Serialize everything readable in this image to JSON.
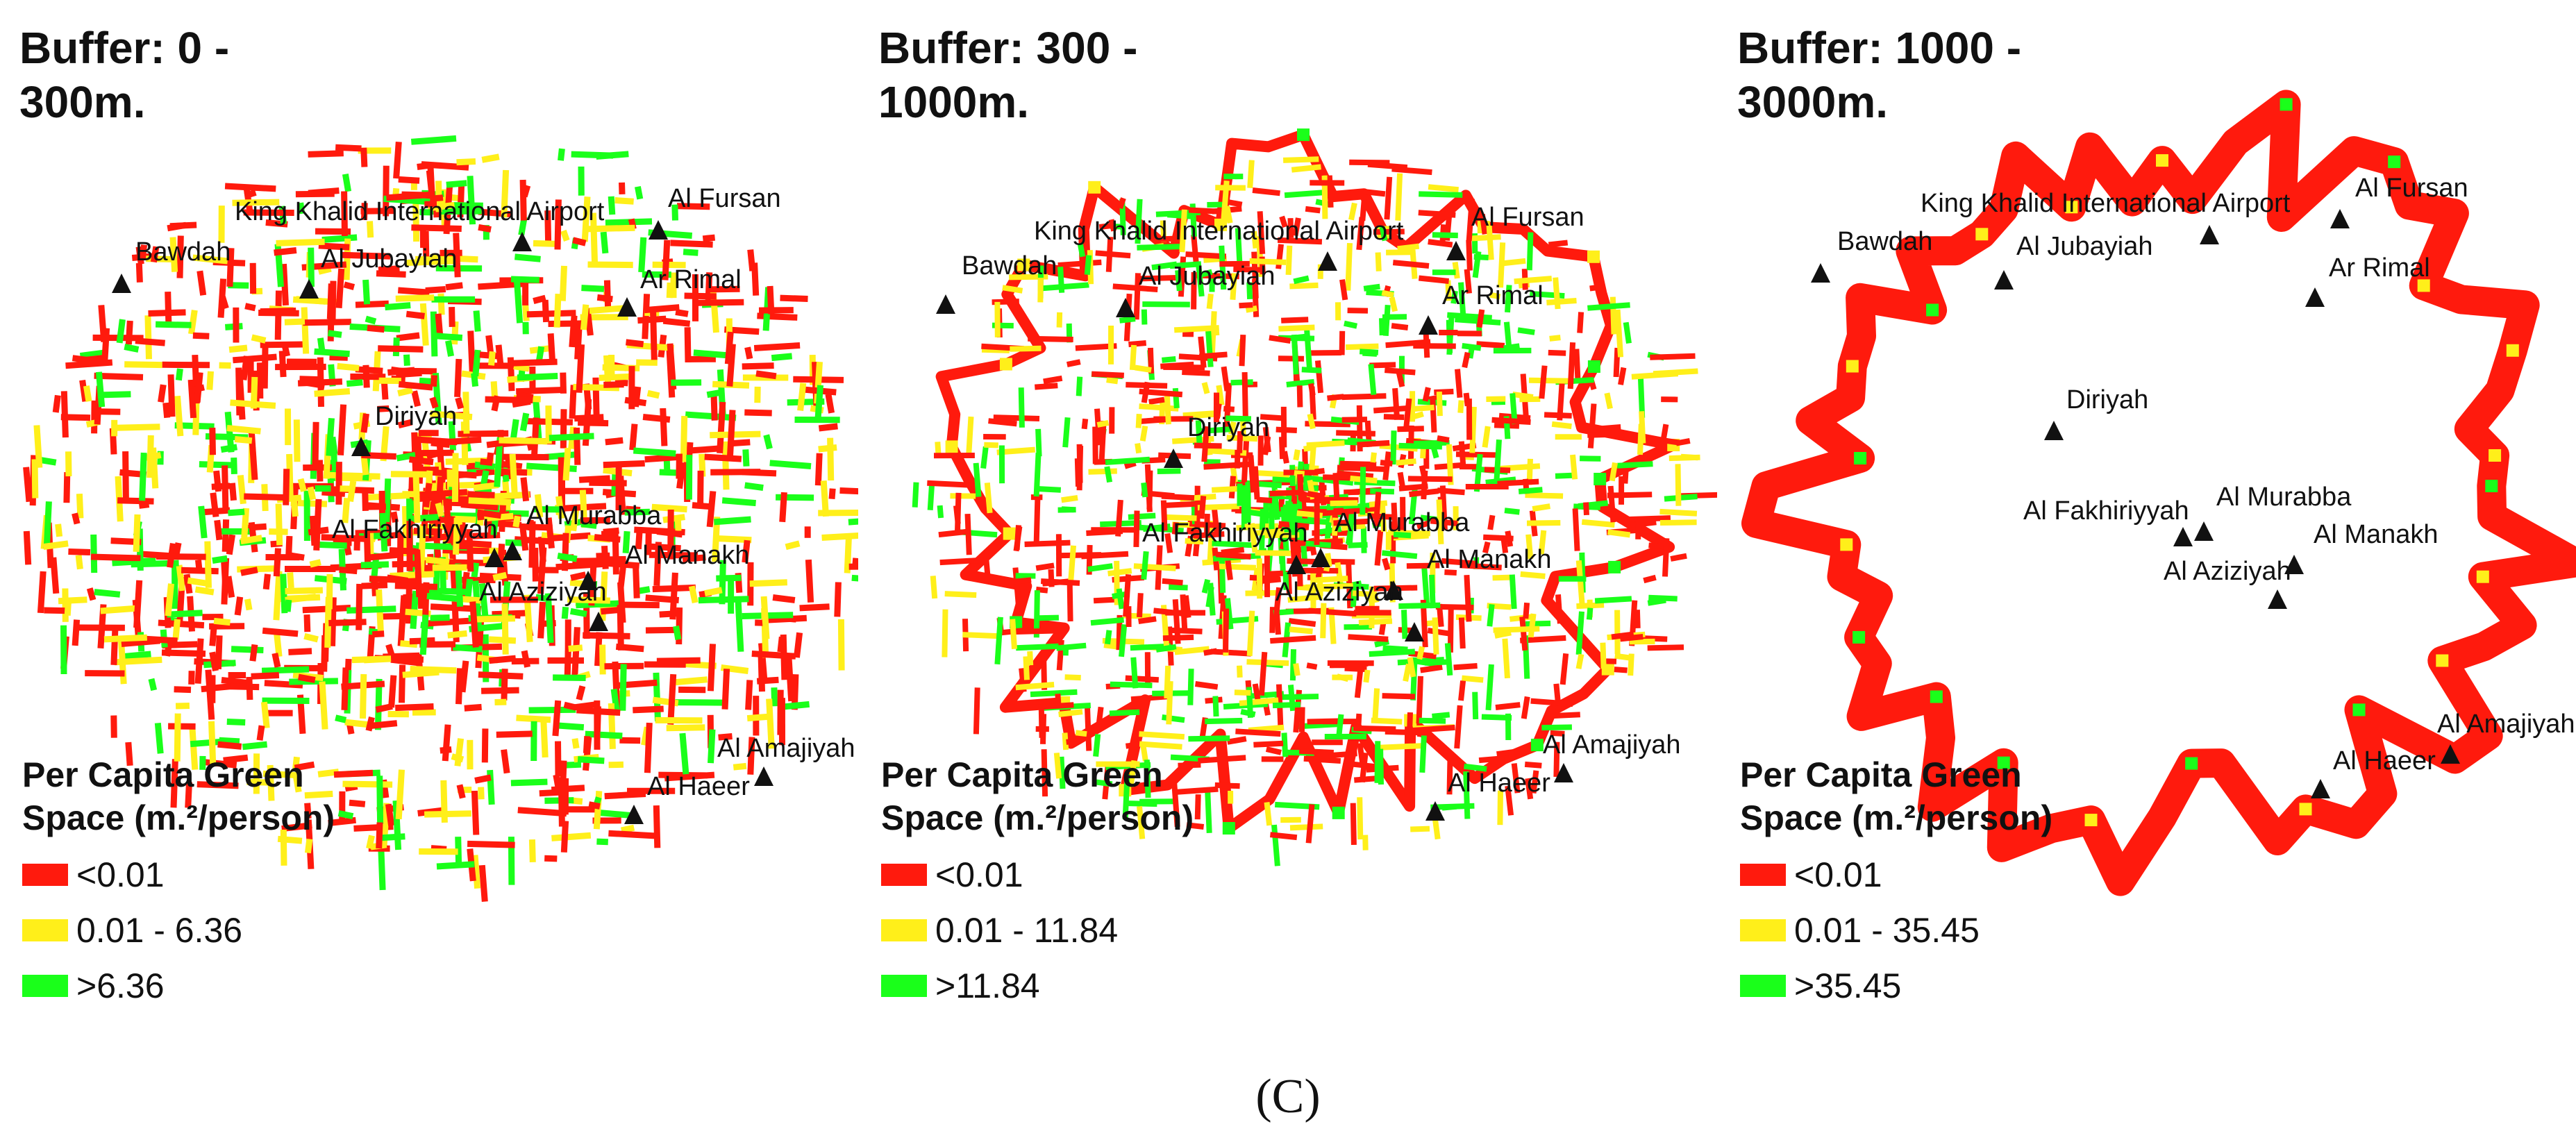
{
  "legend_title": "Per Capita Green\nSpace (m.²/person)",
  "colors": {
    "low": "#ff1a0d",
    "mid": "#ffef1a",
    "high": "#1aff1a",
    "triangle": "#111111"
  },
  "caption": "(C)",
  "panels": [
    {
      "title": "Buffer: 0 -\n300m.",
      "legend": [
        "<0.01",
        "0.01 - 6.36",
        ">6.36"
      ],
      "places": [
        "Bawdah",
        "Al Jubayiah",
        "King Khalid International Airport",
        "Al Fursan",
        "Ar Rimal",
        "Diriyah",
        "Al Fakhiriyyah",
        "Al Murabba",
        "Al Manakh",
        "Al Aziziyah",
        "Al Amajiyah",
        "Al Haeer"
      ]
    },
    {
      "title": "Buffer: 300 -\n1000m.",
      "legend": [
        "<0.01",
        "0.01 - 11.84",
        ">11.84"
      ],
      "places": [
        "Bawdah",
        "Al Jubayiah",
        "King Khalid International Airport",
        "Al Fursan",
        "Ar Rimal",
        "Diriyah",
        "Al Fakhiriyyah",
        "Al Murabba",
        "Al Manakh",
        "Al Aziziyah",
        "Al Amajiyah",
        "Al Haeer"
      ]
    },
    {
      "title": "Buffer: 1000 -\n3000m.",
      "legend": [
        "<0.01",
        "0.01 - 35.45",
        ">35.45"
      ],
      "places": [
        "Bawdah",
        "Al Jubayiah",
        "King Khalid International Airport",
        "Al Fursan",
        "Ar Rimal",
        "Diriyah",
        "Al Fakhiriyyah",
        "Al Murabba",
        "Al Manakh",
        "Al Aziziyah",
        "Al Amajiyah",
        "Al Haeer"
      ]
    }
  ]
}
